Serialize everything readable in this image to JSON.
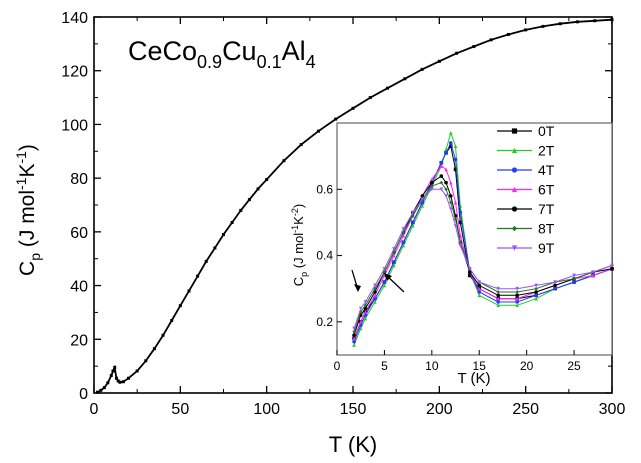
{
  "chart_data": [
    {
      "type": "line",
      "title_parts": {
        "a": "CeCo",
        "b": "0.9",
        "c": "Cu",
        "d": "0.1",
        "e": "Al",
        "f": "4"
      },
      "xlabel": "T  (K)",
      "ylabel_parts": {
        "a": "C",
        "b": "p",
        "c": "  (J mol",
        "d": "-1",
        "e": "K",
        "f": "-1",
        "g": ")"
      },
      "xlim": [
        0,
        300
      ],
      "ylim": [
        0,
        140
      ],
      "xticks": [
        0,
        50,
        100,
        150,
        200,
        250,
        300
      ],
      "yticks": [
        0,
        20,
        40,
        60,
        80,
        100,
        120,
        140
      ],
      "grid": false,
      "series": [
        {
          "color": "#000000",
          "x": [
            2,
            4,
            6,
            8,
            10,
            11,
            12,
            13,
            14,
            15,
            17,
            20,
            25,
            30,
            35,
            40,
            45,
            50,
            55,
            60,
            65,
            70,
            75,
            80,
            85,
            90,
            95,
            100,
            110,
            120,
            130,
            140,
            150,
            160,
            170,
            180,
            190,
            200,
            210,
            220,
            230,
            240,
            250,
            260,
            270,
            280,
            290,
            300
          ],
          "y": [
            0.3,
            1.0,
            2.0,
            3.8,
            6.5,
            8.2,
            9.5,
            5.5,
            4.5,
            4.0,
            4.2,
            5.5,
            8.2,
            12.0,
            16.5,
            21.5,
            27.0,
            32.5,
            38.0,
            43.5,
            49.0,
            54.0,
            59.0,
            63.5,
            68.0,
            72.0,
            76.0,
            79.5,
            86.5,
            92.5,
            97.5,
            102.0,
            106.0,
            110.0,
            113.5,
            117.0,
            120.5,
            123.5,
            126.5,
            129.0,
            131.5,
            133.5,
            135.2,
            136.5,
            137.5,
            138.2,
            138.6,
            139.0
          ]
        }
      ]
    },
    {
      "type": "line",
      "xlabel": "T  (K)",
      "ylabel_parts": {
        "a": "C",
        "b": "p",
        "c": "  (J mol",
        "d": "-1",
        "e": "K",
        "f": "-2",
        "g": ")"
      },
      "xlim": [
        0,
        29
      ],
      "ylim": [
        0.1,
        0.8
      ],
      "xticks": [
        0,
        5,
        10,
        15,
        20,
        25
      ],
      "yticks": [
        0.2,
        0.4,
        0.6
      ],
      "grid": false,
      "legend_position": "top-right",
      "series": [
        {
          "name": "0T",
          "color": "#000000",
          "marker": "square",
          "x": [
            1.8,
            2.5,
            3,
            4,
            5,
            6,
            7,
            8,
            9,
            10,
            11,
            11.5,
            12,
            12.5,
            13,
            14,
            15,
            17,
            19,
            21,
            23,
            25,
            27,
            29
          ],
          "y": [
            0.15,
            0.2,
            0.23,
            0.27,
            0.32,
            0.38,
            0.44,
            0.5,
            0.56,
            0.62,
            0.68,
            0.71,
            0.73,
            0.66,
            0.5,
            0.34,
            0.3,
            0.27,
            0.27,
            0.28,
            0.3,
            0.32,
            0.34,
            0.36
          ]
        },
        {
          "name": "2T",
          "color": "#22cc22",
          "marker": "triangle-up",
          "x": [
            1.8,
            2.5,
            3,
            4,
            5,
            6,
            7,
            8,
            9,
            10,
            11,
            11.5,
            12,
            12.5,
            13,
            14,
            15,
            17,
            19,
            21,
            23,
            25,
            27,
            29
          ],
          "y": [
            0.13,
            0.18,
            0.21,
            0.26,
            0.31,
            0.37,
            0.43,
            0.49,
            0.55,
            0.61,
            0.67,
            0.72,
            0.77,
            0.73,
            0.55,
            0.35,
            0.28,
            0.25,
            0.25,
            0.27,
            0.3,
            0.32,
            0.34,
            0.36
          ]
        },
        {
          "name": "4T",
          "color": "#1f3fff",
          "marker": "circle",
          "x": [
            1.8,
            2.5,
            3,
            4,
            5,
            6,
            7,
            8,
            9,
            10,
            11,
            11.5,
            12,
            12.5,
            13,
            14,
            15,
            17,
            19,
            21,
            23,
            25,
            27,
            29
          ],
          "y": [
            0.14,
            0.19,
            0.22,
            0.27,
            0.32,
            0.38,
            0.44,
            0.5,
            0.56,
            0.62,
            0.68,
            0.71,
            0.74,
            0.69,
            0.53,
            0.35,
            0.29,
            0.26,
            0.26,
            0.28,
            0.3,
            0.32,
            0.34,
            0.36
          ]
        },
        {
          "name": "6T",
          "color": "#ff22ff",
          "marker": "triangle-up",
          "x": [
            1.8,
            2.5,
            3,
            4,
            5,
            6,
            7,
            8,
            9,
            10,
            11,
            11.5,
            12,
            12.5,
            13,
            14,
            15,
            17,
            19,
            21,
            23,
            25,
            27,
            29
          ],
          "y": [
            0.15,
            0.2,
            0.23,
            0.28,
            0.34,
            0.4,
            0.46,
            0.52,
            0.58,
            0.63,
            0.67,
            0.66,
            0.62,
            0.56,
            0.46,
            0.35,
            0.3,
            0.27,
            0.27,
            0.29,
            0.31,
            0.33,
            0.34,
            0.36
          ]
        },
        {
          "name": "7T",
          "color": "#000000",
          "marker": "circle",
          "x": [
            1.8,
            2.5,
            3,
            4,
            5,
            6,
            7,
            8,
            9,
            10,
            11,
            11.5,
            12,
            12.5,
            13,
            14,
            15,
            17,
            19,
            21,
            23,
            25,
            27,
            29
          ],
          "y": [
            0.16,
            0.22,
            0.24,
            0.29,
            0.35,
            0.41,
            0.47,
            0.53,
            0.58,
            0.62,
            0.64,
            0.62,
            0.58,
            0.52,
            0.44,
            0.35,
            0.31,
            0.28,
            0.28,
            0.29,
            0.31,
            0.33,
            0.35,
            0.36
          ]
        },
        {
          "name": "8T",
          "color": "#227722",
          "marker": "diamond",
          "x": [
            1.8,
            2.5,
            3,
            4,
            5,
            6,
            7,
            8,
            9,
            10,
            11,
            11.5,
            12,
            12.5,
            13,
            14,
            15,
            17,
            19,
            21,
            23,
            25,
            27,
            29
          ],
          "y": [
            0.17,
            0.23,
            0.25,
            0.3,
            0.35,
            0.41,
            0.47,
            0.52,
            0.57,
            0.61,
            0.62,
            0.6,
            0.56,
            0.51,
            0.44,
            0.36,
            0.32,
            0.29,
            0.29,
            0.3,
            0.32,
            0.33,
            0.35,
            0.37
          ]
        },
        {
          "name": "9T",
          "color": "#9955ff",
          "marker": "triangle-down",
          "x": [
            1.8,
            2.5,
            3,
            4,
            5,
            6,
            7,
            8,
            9,
            10,
            11,
            11.5,
            12,
            12.5,
            13,
            14,
            15,
            17,
            19,
            21,
            23,
            25,
            27,
            29
          ],
          "y": [
            0.18,
            0.24,
            0.26,
            0.31,
            0.36,
            0.42,
            0.48,
            0.53,
            0.57,
            0.6,
            0.6,
            0.58,
            0.54,
            0.49,
            0.43,
            0.36,
            0.32,
            0.3,
            0.3,
            0.31,
            0.32,
            0.34,
            0.35,
            0.37
          ]
        }
      ]
    }
  ]
}
